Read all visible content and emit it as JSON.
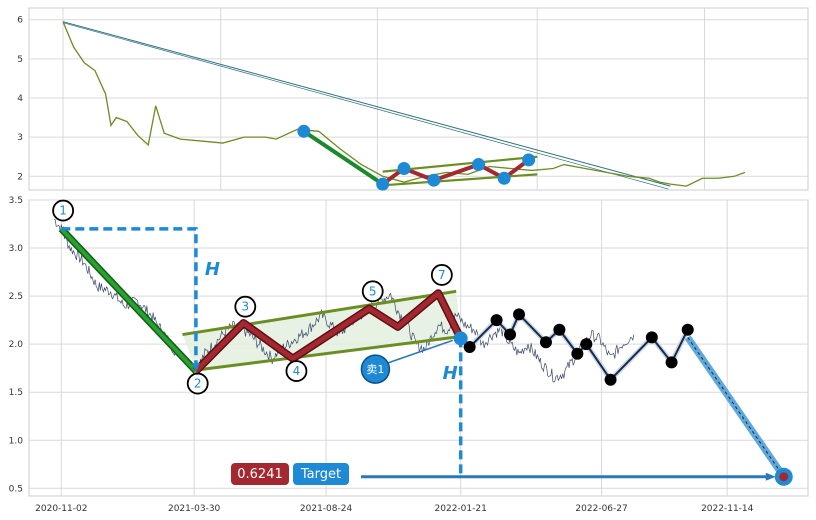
{
  "chart_data": [
    {
      "type": "line",
      "panel": "top",
      "yticks": [
        2,
        3,
        4,
        5,
        6
      ],
      "ylim": [
        1.65,
        6.3
      ],
      "grid": true,
      "series": [
        {
          "color": "#6b8e23",
          "points": [
            [
              0,
              5.95
            ],
            [
              10,
              5.3
            ],
            [
              20,
              4.9
            ],
            [
              30,
              4.7
            ],
            [
              40,
              4.1
            ],
            [
              45,
              3.3
            ],
            [
              50,
              3.5
            ],
            [
              60,
              3.4
            ],
            [
              70,
              3.05
            ],
            [
              80,
              2.8
            ],
            [
              87,
              3.8
            ],
            [
              95,
              3.1
            ],
            [
              110,
              2.95
            ],
            [
              130,
              2.9
            ],
            [
              150,
              2.85
            ],
            [
              170,
              3.0
            ],
            [
              190,
              3.0
            ],
            [
              200,
              2.95
            ],
            [
              220,
              3.2
            ],
            [
              240,
              3.15
            ],
            [
              260,
              2.7
            ],
            [
              280,
              2.3
            ],
            [
              300,
              2.0
            ],
            [
              320,
              1.85
            ],
            [
              340,
              2.0
            ],
            [
              360,
              2.1
            ],
            [
              380,
              2.05
            ],
            [
              400,
              2.25
            ],
            [
              420,
              2.2
            ],
            [
              440,
              2.15
            ],
            [
              460,
              2.2
            ],
            [
              470,
              2.3
            ],
            [
              490,
              2.2
            ],
            [
              510,
              2.1
            ],
            [
              530,
              2.0
            ],
            [
              550,
              1.95
            ],
            [
              560,
              1.85
            ],
            [
              570,
              1.8
            ],
            [
              585,
              1.75
            ],
            [
              600,
              1.95
            ],
            [
              615,
              1.95
            ],
            [
              630,
              2.0
            ],
            [
              640,
              2.1
            ]
          ]
        }
      ],
      "trendline": {
        "color": "#2a6f7e",
        "points": [
          [
            0,
            5.95
          ],
          [
            570,
            1.75
          ]
        ]
      },
      "wave_points": [
        [
          226,
          3.15
        ],
        [
          300,
          1.8
        ],
        [
          320,
          2.2
        ],
        [
          348,
          1.9
        ],
        [
          390,
          2.3
        ],
        [
          414,
          1.95
        ],
        [
          437,
          2.42
        ]
      ],
      "markers_color": "#1e8ad6"
    },
    {
      "type": "line",
      "panel": "bottom",
      "xticks": [
        "2020-11-02",
        "2021-03-30",
        "2021-08-24",
        "2022-01-21",
        "2022-06-27",
        "2022-11-14"
      ],
      "xtick_days": [
        0,
        148,
        295,
        445,
        602,
        742
      ],
      "yticks": [
        0.5,
        1.0,
        1.5,
        2.0,
        2.5,
        3.0,
        3.5
      ],
      "ylim": [
        0.42,
        3.5
      ],
      "xlim": [
        -36,
        832
      ],
      "grid": true,
      "price": {
        "color": "#3b4a6b",
        "points": [
          [
            -8,
            3.3
          ],
          [
            0,
            3.2
          ],
          [
            10,
            3.0
          ],
          [
            25,
            2.85
          ],
          [
            40,
            2.6
          ],
          [
            55,
            2.55
          ],
          [
            70,
            2.4
          ],
          [
            85,
            2.45
          ],
          [
            100,
            2.3
          ],
          [
            115,
            2.1
          ],
          [
            125,
            1.95
          ],
          [
            135,
            1.9
          ],
          [
            150,
            1.72
          ],
          [
            160,
            1.9
          ],
          [
            175,
            2.05
          ],
          [
            185,
            2.15
          ],
          [
            195,
            2.2
          ],
          [
            210,
            2.1
          ],
          [
            225,
            1.95
          ],
          [
            235,
            1.85
          ],
          [
            245,
            1.95
          ],
          [
            260,
            2.05
          ],
          [
            275,
            2.15
          ],
          [
            290,
            2.3
          ],
          [
            300,
            2.2
          ],
          [
            310,
            2.1
          ],
          [
            325,
            2.25
          ],
          [
            340,
            2.35
          ],
          [
            355,
            2.45
          ],
          [
            367,
            2.52
          ],
          [
            375,
            2.35
          ],
          [
            385,
            2.2
          ],
          [
            395,
            2.0
          ],
          [
            405,
            1.95
          ],
          [
            420,
            2.2
          ],
          [
            430,
            2.15
          ],
          [
            440,
            2.3
          ],
          [
            450,
            2.2
          ],
          [
            460,
            2.15
          ],
          [
            470,
            2.0
          ],
          [
            480,
            2.1
          ],
          [
            490,
            2.15
          ],
          [
            500,
            2.0
          ],
          [
            510,
            1.9
          ],
          [
            520,
            2.0
          ],
          [
            535,
            1.8
          ],
          [
            550,
            1.65
          ],
          [
            560,
            1.7
          ],
          [
            575,
            1.9
          ],
          [
            590,
            2.1
          ],
          [
            600,
            2.05
          ],
          [
            612,
            1.85
          ],
          [
            625,
            2.0
          ],
          [
            638,
            2.1
          ]
        ]
      },
      "pattern": {
        "waves": [
          {
            "label": "1",
            "x": 0,
            "y": 3.2,
            "lx": 2,
            "ly": 3.39
          },
          {
            "label": "2",
            "x": 150,
            "y": 1.72,
            "lx": 152,
            "ly": 1.59
          },
          {
            "label": "3",
            "x": 203,
            "y": 2.22,
            "lx": 205,
            "ly": 2.39
          },
          {
            "label": "4",
            "x": 258,
            "y": 1.85,
            "lx": 262,
            "ly": 1.72
          },
          {
            "label": "5",
            "x": 343,
            "y": 2.37,
            "lx": 347,
            "ly": 2.55
          },
          {
            "label": "7",
            "x": 420,
            "y": 2.53,
            "lx": 424,
            "ly": 2.72
          }
        ],
        "channel_upper": [
          [
            135,
            2.1
          ],
          [
            440,
            2.55
          ]
        ],
        "channel_lower": [
          [
            150,
            1.73
          ],
          [
            445,
            2.08
          ]
        ],
        "sell_label": "卖1",
        "sell_point": [
          350,
          1.74
        ],
        "breakout": [
          445,
          2.06
        ],
        "h_label": "H",
        "target_value": "0.6241",
        "target_label": "Target",
        "target_point": [
          805,
          0.62
        ],
        "projection_start": [
          698,
          2.07
        ]
      },
      "post_path": [
        [
          445,
          2.06
        ],
        [
          455,
          1.97
        ],
        [
          485,
          2.25
        ],
        [
          500,
          2.1
        ],
        [
          510,
          2.31
        ],
        [
          540,
          2.02
        ],
        [
          555,
          2.15
        ],
        [
          575,
          1.9
        ],
        [
          585,
          2.0
        ],
        [
          612,
          1.63
        ],
        [
          658,
          2.07
        ],
        [
          680,
          1.81
        ],
        [
          698,
          2.15
        ]
      ]
    }
  ]
}
